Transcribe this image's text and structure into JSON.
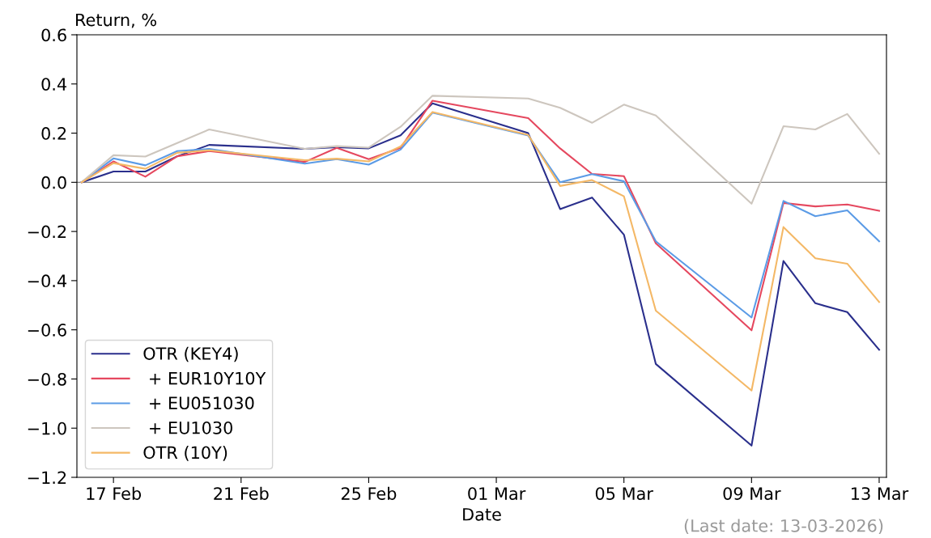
{
  "chart_data": {
    "type": "line",
    "xlabel": "Date",
    "ylabel": "Return, %",
    "annotations": [
      "(Last date: 13-03-2026)"
    ],
    "x": [
      "2026-02-16",
      "2026-02-17",
      "2026-02-18",
      "2026-02-19",
      "2026-02-20",
      "2026-02-23",
      "2026-02-24",
      "2026-02-25",
      "2026-02-26",
      "2026-02-27",
      "2026-03-02",
      "2026-03-03",
      "2026-03-04",
      "2026-03-05",
      "2026-03-06",
      "2026-03-09",
      "2026-03-10",
      "2026-03-11",
      "2026-03-12",
      "2026-03-13"
    ],
    "series": [
      {
        "name": "OTR (KEY4)",
        "color": "#2a2f8c",
        "values": [
          0,
          0.044,
          0.044,
          0.106,
          0.152,
          0.136,
          0.143,
          0.138,
          0.191,
          0.321,
          0.2,
          -0.109,
          -0.062,
          -0.213,
          -0.739,
          -1.071,
          -0.32,
          -0.492,
          -0.528,
          -0.681
        ]
      },
      {
        "name": " + EUR10Y10Y",
        "color": "#e5485f",
        "values": [
          0,
          0.085,
          0.023,
          0.106,
          0.127,
          0.083,
          0.14,
          0.094,
          0.14,
          0.332,
          0.261,
          0.138,
          0.034,
          0.025,
          -0.248,
          -0.602,
          -0.084,
          -0.098,
          -0.09,
          -0.116
        ]
      },
      {
        "name": " + EU051030",
        "color": "#5b9be6",
        "values": [
          0,
          0.097,
          0.069,
          0.127,
          0.136,
          0.076,
          0.094,
          0.072,
          0.133,
          0.283,
          0.19,
          0.0,
          0.033,
          0.004,
          -0.24,
          -0.55,
          -0.076,
          -0.138,
          -0.114,
          -0.24
        ]
      },
      {
        "name": " + EU1030",
        "color": "#cdc6be",
        "values": [
          0,
          0.11,
          0.105,
          0.16,
          0.215,
          0.136,
          0.147,
          0.141,
          0.226,
          0.352,
          0.341,
          0.303,
          0.242,
          0.316,
          0.272,
          -0.087,
          0.228,
          0.215,
          0.278,
          0.116
        ]
      },
      {
        "name": "OTR (10Y)",
        "color": "#f4b866",
        "values": [
          0,
          0.078,
          0.055,
          0.12,
          0.13,
          0.09,
          0.096,
          0.085,
          0.146,
          0.286,
          0.193,
          -0.015,
          0.009,
          -0.057,
          -0.522,
          -0.847,
          -0.182,
          -0.309,
          -0.331,
          -0.487
        ]
      }
    ],
    "xlim": [
      "2026-02-15T20:30",
      "2026-03-13T05:30"
    ],
    "xticks": [
      {
        "value": "2026-02-17",
        "label": "17 Feb"
      },
      {
        "value": "2026-02-21",
        "label": "21 Feb"
      },
      {
        "value": "2026-02-25",
        "label": "25 Feb"
      },
      {
        "value": "2026-03-01",
        "label": "01 Mar"
      },
      {
        "value": "2026-03-05",
        "label": "05 Mar"
      },
      {
        "value": "2026-03-09",
        "label": "09 Mar"
      },
      {
        "value": "2026-03-13",
        "label": "13 Mar"
      }
    ],
    "ylim": [
      -1.2,
      0.6
    ],
    "yticks": [
      {
        "value": -1.2,
        "label": "−1.2"
      },
      {
        "value": -1.0,
        "label": "−1.0"
      },
      {
        "value": -0.8,
        "label": "−0.8"
      },
      {
        "value": -0.6,
        "label": "−0.6"
      },
      {
        "value": -0.4,
        "label": "−0.4"
      },
      {
        "value": -0.2,
        "label": "−0.2"
      },
      {
        "value": 0.0,
        "label": "0.0"
      },
      {
        "value": 0.2,
        "label": "0.2"
      },
      {
        "value": 0.4,
        "label": "0.4"
      },
      {
        "value": 0.6,
        "label": "0.6"
      }
    ],
    "ref_lines": [
      {
        "axis": "y",
        "value": 0,
        "color": "#808080"
      }
    ],
    "grid": false,
    "legend": "bottom left",
    "line_style": "solid"
  }
}
